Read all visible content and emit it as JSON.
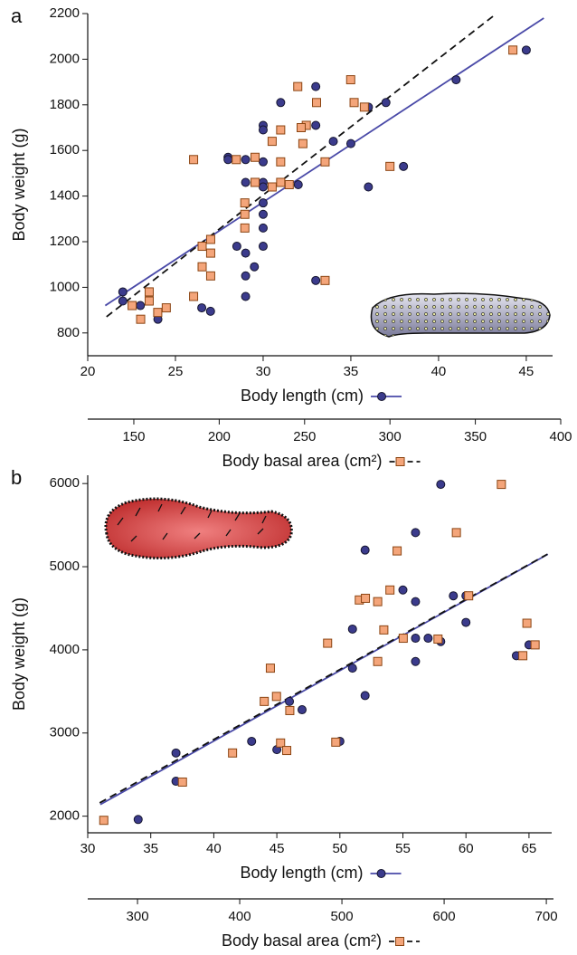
{
  "chart_data": [
    {
      "type": "scatter",
      "panel_label": "a",
      "y_label": "Body weight (g)",
      "ylim": [
        700,
        2200
      ],
      "yticks": [
        800,
        1000,
        1200,
        1400,
        1600,
        1800,
        2000,
        2200
      ],
      "x_label": "Body length (cm)",
      "xlim": [
        20,
        46.5
      ],
      "xticks": [
        20,
        25,
        30,
        35,
        40,
        45
      ],
      "x2_label": "Body basal area (cm²)",
      "x2lim": [
        123,
        400
      ],
      "x2ticks": [
        150,
        200,
        250,
        300,
        350,
        400
      ],
      "series": [
        {
          "marker": "circle",
          "color": "#3b3b8c",
          "x_axis": "x",
          "x": [
            22,
            22,
            23,
            24,
            26.5,
            27,
            28,
            28,
            28.5,
            29,
            29,
            29,
            29,
            29,
            29.5,
            30,
            30,
            30,
            30,
            30,
            30,
            30,
            30,
            30,
            31,
            32,
            33,
            33,
            33,
            34,
            35,
            36,
            36,
            37,
            38,
            41,
            45
          ],
          "values": [
            980,
            940,
            920,
            860,
            910,
            895,
            1570,
            1560,
            1180,
            1560,
            1460,
            1150,
            1050,
            960,
            1090,
            1710,
            1690,
            1550,
            1460,
            1440,
            1370,
            1320,
            1260,
            1180,
            1810,
            1450,
            1880,
            1710,
            1030,
            1640,
            1630,
            1790,
            1440,
            1810,
            1530,
            1910,
            2040
          ]
        },
        {
          "marker": "square",
          "color": "#f4a57a",
          "x_axis": "x2",
          "x": [
            149,
            154,
            159,
            159,
            164,
            169,
            185,
            185,
            190,
            190,
            195,
            195,
            195,
            210,
            215,
            215,
            215,
            221,
            221,
            231,
            231,
            236,
            236,
            236,
            241,
            246,
            251,
            249,
            248,
            257,
            262,
            262,
            277,
            279,
            285,
            300,
            372
          ],
          "values": [
            920,
            860,
            980,
            940,
            890,
            910,
            1560,
            960,
            1090,
            1180,
            1210,
            1150,
            1050,
            1560,
            1370,
            1320,
            1260,
            1460,
            1570,
            1640,
            1440,
            1690,
            1550,
            1460,
            1450,
            1880,
            1710,
            1630,
            1700,
            1810,
            1550,
            1030,
            1910,
            1810,
            1790,
            1530,
            2040
          ]
        }
      ],
      "fits": [
        {
          "x_axis": "x",
          "color": "#4a4aa8",
          "dashed": false,
          "x": [
            21,
            46
          ],
          "values": [
            920,
            2180
          ]
        },
        {
          "x_axis": "x2",
          "color": "#111111",
          "dashed": true,
          "x": [
            134,
            361
          ],
          "values": [
            871,
            2192
          ]
        }
      ]
    },
    {
      "type": "scatter",
      "panel_label": "b",
      "y_label": "Body weight (g)",
      "ylim": [
        1800,
        6100
      ],
      "yticks": [
        2000,
        3000,
        4000,
        5000,
        6000
      ],
      "x_label": "Body length (cm)",
      "xlim": [
        30,
        66.8
      ],
      "xticks": [
        30,
        35,
        40,
        45,
        50,
        55,
        60,
        65
      ],
      "x2_label": "Body basal area (cm²)",
      "x2lim": [
        251.3,
        707
      ],
      "x2ticks": [
        300,
        400,
        500,
        600,
        700
      ],
      "series": [
        {
          "marker": "circle",
          "color": "#3b3b8c",
          "x_axis": "x",
          "x": [
            34,
            37,
            37,
            43,
            45,
            46,
            47,
            50,
            51,
            51,
            52,
            52,
            55,
            56,
            56,
            56,
            56,
            57,
            58,
            58,
            59,
            60,
            60,
            64,
            65
          ],
          "values": [
            1960,
            2760,
            2420,
            2900,
            2800,
            3380,
            3280,
            2900,
            4250,
            3780,
            5200,
            3450,
            4720,
            5410,
            4580,
            4140,
            3860,
            4140,
            5990,
            4100,
            4650,
            4650,
            4330,
            3930,
            4060
          ]
        },
        {
          "marker": "square",
          "color": "#f4a57a",
          "x_axis": "x2",
          "x": [
            267,
            344,
            393,
            424,
            430,
            436,
            440,
            446,
            449,
            486,
            494,
            517,
            523,
            535,
            535,
            541,
            547,
            554,
            560,
            594,
            612,
            624,
            656,
            677,
            681,
            689
          ],
          "values": [
            1950,
            2410,
            2760,
            3380,
            3780,
            3440,
            2880,
            2790,
            3270,
            4080,
            2890,
            4600,
            4620,
            4580,
            3860,
            4240,
            4720,
            5190,
            4140,
            4130,
            5410,
            4650,
            5990,
            3930,
            4320,
            4060
          ]
        }
      ],
      "fits": [
        {
          "x_axis": "x",
          "color": "#4a4aa8",
          "dashed": false,
          "x": [
            31,
            66.5
          ],
          "values": [
            2140,
            5150
          ]
        },
        {
          "x_axis": "x2",
          "color": "#111111",
          "dashed": true,
          "x": [
            263,
            701
          ],
          "values": [
            2160,
            5150
          ]
        }
      ]
    }
  ]
}
